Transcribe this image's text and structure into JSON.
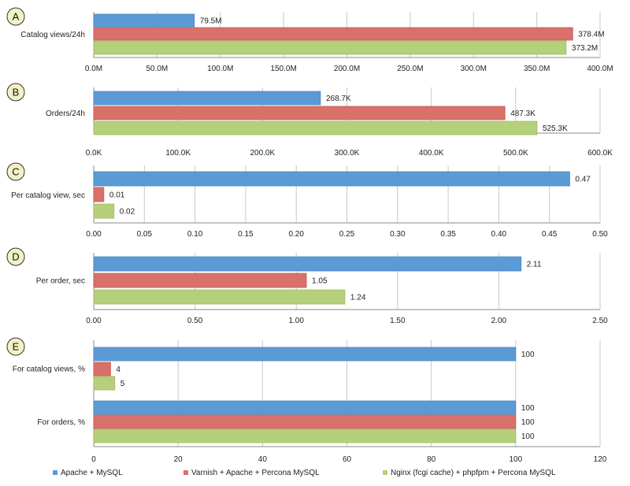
{
  "colors": {
    "series": [
      "#5b9bd5",
      "#d9706a",
      "#b5d07a"
    ],
    "series_stroke": [
      "#4a86bd",
      "#c35c56",
      "#9fbb63"
    ],
    "grid": "#c8c8c8",
    "badge": "#f3f2c6"
  },
  "legend": [
    "Apache + MySQL",
    "Varnish + Apache + Percona MySQL",
    "Nginx (fcgi cache) + phpfpm + Percona MySQL"
  ],
  "chart_data": [
    {
      "type": "bar",
      "orientation": "horizontal",
      "panel": "A",
      "categories": [
        "Catalog views/24h"
      ],
      "series": [
        {
          "name": "Apache + MySQL",
          "values": [
            79.5
          ],
          "labels": [
            "79.5M"
          ]
        },
        {
          "name": "Varnish + Apache + Percona MySQL",
          "values": [
            378.4
          ],
          "labels": [
            "378.4M"
          ]
        },
        {
          "name": "Nginx (fcgi cache) + phpfpm + Percona MySQL",
          "values": [
            373.2
          ],
          "labels": [
            "373.2M"
          ]
        }
      ],
      "xlim": [
        0,
        400
      ],
      "ticks": [
        0,
        50,
        100,
        150,
        200,
        250,
        300,
        350,
        400
      ],
      "tick_labels": [
        "0.0M",
        "50.0M",
        "100.0M",
        "150.0M",
        "200.0M",
        "250.0M",
        "300.0M",
        "350.0M",
        "400.0M"
      ],
      "grid": true
    },
    {
      "type": "bar",
      "orientation": "horizontal",
      "panel": "B",
      "categories": [
        "Orders/24h"
      ],
      "series": [
        {
          "name": "Apache + MySQL",
          "values": [
            268.7
          ],
          "labels": [
            "268.7K"
          ]
        },
        {
          "name": "Varnish + Apache + Percona MySQL",
          "values": [
            487.3
          ],
          "labels": [
            "487.3K"
          ]
        },
        {
          "name": "Nginx (fcgi cache) + phpfpm + Percona MySQL",
          "values": [
            525.3
          ],
          "labels": [
            "525.3K"
          ]
        }
      ],
      "xlim": [
        0,
        600
      ],
      "ticks": [
        0,
        100,
        200,
        300,
        400,
        500,
        600
      ],
      "tick_labels": [
        "0.0K",
        "100.0K",
        "200.0K",
        "300.0K",
        "400.0K",
        "500.0K",
        "600.0K"
      ],
      "grid": true
    },
    {
      "type": "bar",
      "orientation": "horizontal",
      "panel": "C",
      "categories": [
        "Per catalog view, sec"
      ],
      "series": [
        {
          "name": "Apache + MySQL",
          "values": [
            0.47
          ],
          "labels": [
            "0.47"
          ]
        },
        {
          "name": "Varnish + Apache + Percona MySQL",
          "values": [
            0.01
          ],
          "labels": [
            "0.01"
          ]
        },
        {
          "name": "Nginx (fcgi cache) + phpfpm + Percona MySQL",
          "values": [
            0.02
          ],
          "labels": [
            "0.02"
          ]
        }
      ],
      "xlim": [
        0,
        0.5
      ],
      "ticks": [
        0,
        0.05,
        0.1,
        0.15,
        0.2,
        0.25,
        0.3,
        0.35,
        0.4,
        0.45,
        0.5
      ],
      "tick_labels": [
        "0.00",
        "0.05",
        "0.10",
        "0.15",
        "0.20",
        "0.25",
        "0.30",
        "0.35",
        "0.40",
        "0.45",
        "0.50"
      ],
      "grid": true
    },
    {
      "type": "bar",
      "orientation": "horizontal",
      "panel": "D",
      "categories": [
        "Per order, sec"
      ],
      "series": [
        {
          "name": "Apache + MySQL",
          "values": [
            2.11
          ],
          "labels": [
            "2.11"
          ]
        },
        {
          "name": "Varnish + Apache + Percona MySQL",
          "values": [
            1.05
          ],
          "labels": [
            "1.05"
          ]
        },
        {
          "name": "Nginx (fcgi cache) + phpfpm + Percona MySQL",
          "values": [
            1.24
          ],
          "labels": [
            "1.24"
          ]
        }
      ],
      "xlim": [
        0,
        2.5
      ],
      "ticks": [
        0,
        0.5,
        1,
        1.5,
        2,
        2.5
      ],
      "tick_labels": [
        "0.00",
        "0.50",
        "1.00",
        "1.50",
        "2.00",
        "2.50"
      ],
      "grid": true
    },
    {
      "type": "bar",
      "orientation": "horizontal",
      "panel": "E",
      "categories": [
        "For catalog views, %",
        "For orders, %"
      ],
      "series": [
        {
          "name": "Apache + MySQL",
          "values": [
            100,
            100
          ],
          "labels": [
            "100",
            "100"
          ]
        },
        {
          "name": "Varnish + Apache + Percona MySQL",
          "values": [
            4,
            100
          ],
          "labels": [
            "4",
            "100"
          ]
        },
        {
          "name": "Nginx (fcgi cache) + phpfpm + Percona MySQL",
          "values": [
            5,
            100
          ],
          "labels": [
            "5",
            "100"
          ]
        }
      ],
      "xlim": [
        0,
        120
      ],
      "ticks": [
        0,
        20,
        40,
        60,
        80,
        100,
        120
      ],
      "tick_labels": [
        "0",
        "20",
        "40",
        "60",
        "80",
        "100",
        "120"
      ],
      "grid": true
    }
  ]
}
